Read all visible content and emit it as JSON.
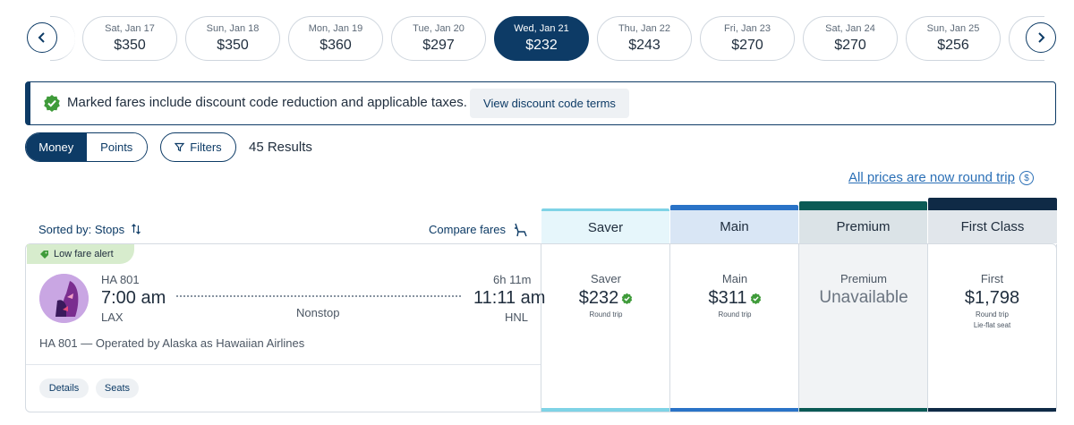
{
  "dates": [
    {
      "day": "Sat, Jan 17",
      "price": "$350"
    },
    {
      "day": "Sun, Jan 18",
      "price": "$350"
    },
    {
      "day": "Mon, Jan 19",
      "price": "$360"
    },
    {
      "day": "Tue, Jan 20",
      "price": "$297"
    },
    {
      "day": "Wed, Jan 21",
      "price": "$232"
    },
    {
      "day": "Thu, Jan 22",
      "price": "$243"
    },
    {
      "day": "Fri, Jan 23",
      "price": "$270"
    },
    {
      "day": "Sat, Jan 24",
      "price": "$270"
    },
    {
      "day": "Sun, Jan 25",
      "price": "$256"
    }
  ],
  "banner": {
    "text": "Marked fares include discount code reduction and applicable taxes.",
    "button": "View discount code terms"
  },
  "toolbar": {
    "money": "Money",
    "points": "Points",
    "filters": "Filters",
    "results": "45 Results"
  },
  "round_trip_link": "All prices are now round trip",
  "sorted_by": "Sorted by: Stops",
  "compare_fares": "Compare fares",
  "fare_headers": {
    "saver": "Saver",
    "main": "Main",
    "premium": "Premium",
    "first": "First Class"
  },
  "flight": {
    "alert": "Low fare alert",
    "flight_number": "HA 801",
    "depart_time": "7:00 am",
    "origin": "LAX",
    "duration": "6h 11m",
    "arrive_time": "11:11 am",
    "destination": "HNL",
    "stops": "Nonstop",
    "operated_by": "HA 801 — Operated by Alaska as Hawaiian Airlines",
    "details": "Details",
    "seats": "Seats"
  },
  "fares": {
    "saver": {
      "name": "Saver",
      "price": "$232",
      "sub": "Round trip"
    },
    "main": {
      "name": "Main",
      "price": "$311",
      "sub": "Round trip"
    },
    "premium": {
      "name": "Premium",
      "status": "Unavailable"
    },
    "first": {
      "name": "First",
      "price": "$1,798",
      "sub": "Round trip",
      "note": "Lie-flat seat"
    }
  },
  "colors": {
    "navy": "#0d3b66",
    "saver": "#7fd3e6",
    "main": "#2a73c7",
    "premium": "#0b5a55",
    "first": "#0f2a46",
    "discount_green": "#3f9b3a"
  }
}
